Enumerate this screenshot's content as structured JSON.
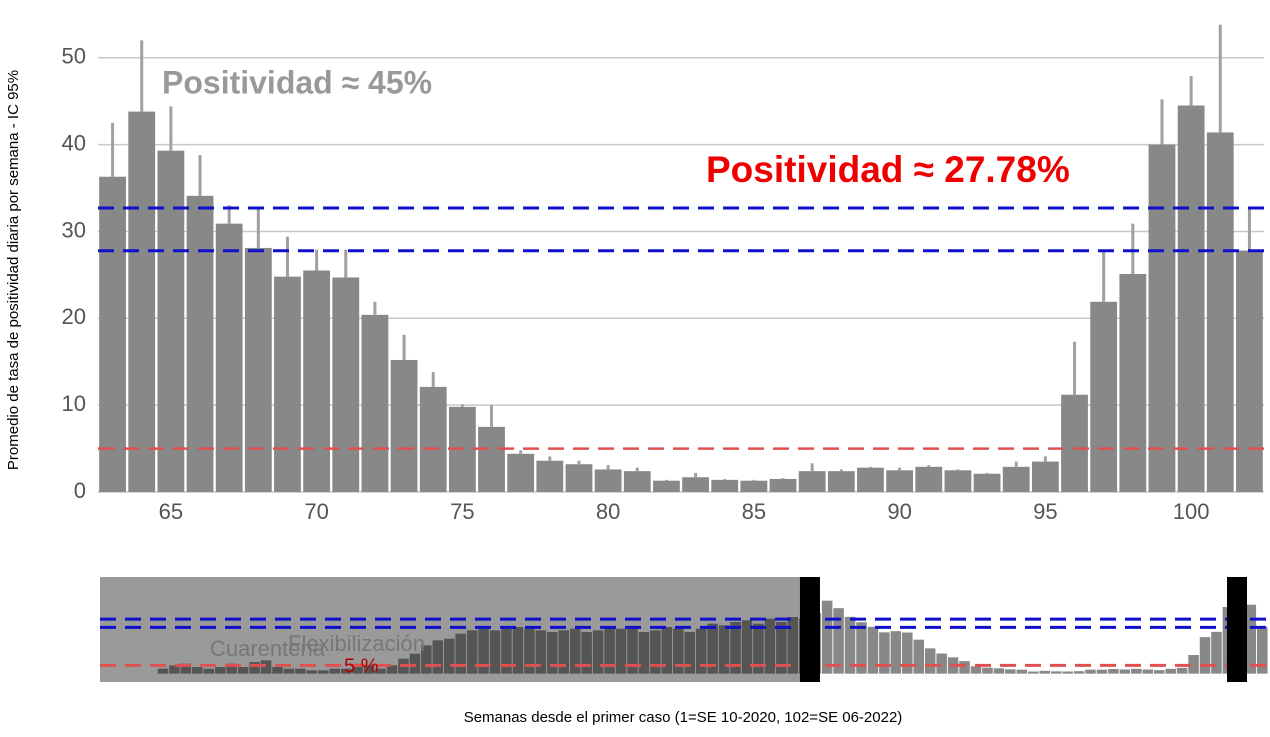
{
  "chart_data": {
    "type": "bar",
    "x": [
      63,
      64,
      65,
      66,
      67,
      68,
      69,
      70,
      71,
      72,
      73,
      74,
      75,
      76,
      77,
      78,
      79,
      80,
      81,
      82,
      83,
      84,
      85,
      86,
      87,
      88,
      89,
      90,
      91,
      92,
      93,
      94,
      95,
      96,
      97,
      98,
      99,
      100,
      101,
      102
    ],
    "values": [
      36.3,
      43.8,
      39.3,
      34.1,
      30.9,
      28.1,
      24.8,
      25.5,
      24.7,
      20.4,
      15.2,
      12.1,
      9.8,
      7.5,
      4.4,
      3.6,
      3.2,
      2.6,
      2.4,
      1.3,
      1.7,
      1.4,
      1.3,
      1.5,
      2.4,
      2.4,
      2.8,
      2.5,
      2.9,
      2.5,
      2.1,
      2.9,
      3.5,
      11.2,
      21.9,
      25.1,
      40,
      44.5,
      41.4,
      27.8
    ],
    "ci_upper": [
      42.5,
      52,
      44.4,
      38.8,
      33,
      32.7,
      29.4,
      27.9,
      27.9,
      21.9,
      18.1,
      13.8,
      10.1,
      10,
      4.8,
      4.1,
      3.6,
      3.1,
      2.8,
      1.4,
      2.2,
      1.5,
      1.4,
      1.6,
      3.3,
      2.6,
      2.9,
      2.8,
      3.1,
      2.6,
      2.2,
      3.5,
      4.1,
      17.3,
      27.9,
      30.9,
      45.2,
      47.9,
      53.8,
      32.6
    ],
    "color": "#888888",
    "error_color": "#a0a0a0",
    "xlim": [
      62.5,
      102.5
    ],
    "xticks": [
      65,
      70,
      75,
      80,
      85,
      90,
      95,
      100
    ],
    "ylim": [
      0,
      54
    ],
    "yticks": [
      0,
      10,
      20,
      30,
      40,
      50
    ],
    "grid": true,
    "ylabel": "Promedio de tasa de positividad diaria por semana - IC 95%",
    "xlabel": "Semanas desde el primer caso (1=SE 10-2020, 102=SE 06-2022)",
    "hlines": [
      {
        "value": 32.7,
        "color": "#1010cc"
      },
      {
        "value": 27.78,
        "color": "#1010cc"
      },
      {
        "value": 5,
        "color": "#e05050"
      }
    ],
    "annotations": [
      {
        "text": "Positividad ≈ 45%",
        "color": "#999999"
      },
      {
        "text": "Positividad ≈ 27.78%",
        "color": "#ee0000"
      }
    ],
    "overview": {
      "x": [
        1,
        2,
        3,
        4,
        5,
        6,
        7,
        8,
        9,
        10,
        11,
        12,
        13,
        14,
        15,
        16,
        17,
        18,
        19,
        20,
        21,
        22,
        23,
        24,
        25,
        26,
        27,
        28,
        29,
        30,
        31,
        32,
        33,
        34,
        35,
        36,
        37,
        38,
        39,
        40,
        41,
        42,
        43,
        44,
        45,
        46,
        47,
        48,
        49,
        50,
        51,
        52,
        53,
        54,
        55,
        56,
        57,
        58,
        59,
        60,
        61,
        62
      ],
      "values": [
        null,
        null,
        null,
        null,
        null,
        3,
        5,
        6,
        4,
        3,
        4,
        6,
        4,
        7,
        8,
        4,
        3,
        3,
        2,
        2,
        3,
        3,
        4,
        5,
        3,
        5,
        9,
        12,
        17,
        20,
        21,
        24,
        26,
        27,
        26,
        27,
        28,
        27,
        26,
        25,
        26,
        27,
        25,
        26,
        28,
        27,
        27,
        25,
        26,
        28,
        27,
        25,
        27,
        30,
        29,
        31,
        32,
        30,
        33,
        31,
        34,
        33
      ],
      "xlim": [
        0.5,
        102.5
      ],
      "ylim": [
        -5,
        58
      ],
      "labels": [
        "Cuarentena",
        "Flexibilización",
        "5 %"
      ]
    }
  }
}
